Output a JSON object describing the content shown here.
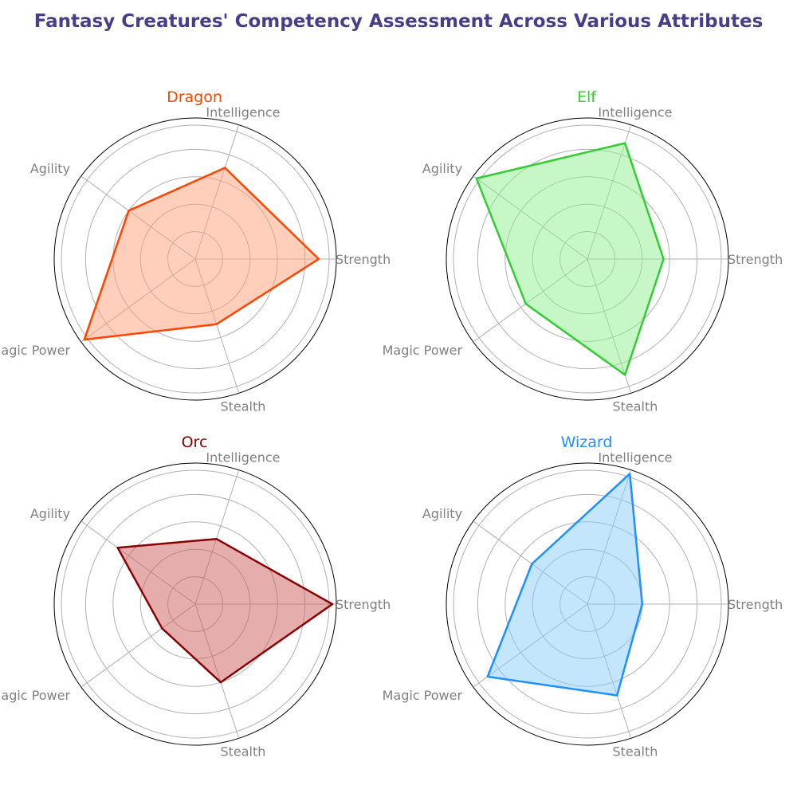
{
  "title": "Fantasy Creatures' Competency Assessment Across Various Attributes",
  "colors": {
    "title": "#483d8b",
    "axis_label": "#808080",
    "grid": "#b0b0b0",
    "frame": "#000000"
  },
  "chart_data": [
    {
      "type": "radar",
      "title": "Dragon",
      "color": "#ff4500",
      "fill": "#ffa07a",
      "categories": [
        "Strength",
        "Intelligence",
        "Agility",
        "Magic Power",
        "Stealth"
      ],
      "values": [
        9,
        7,
        6,
        10,
        5
      ],
      "rlim": [
        0,
        10
      ],
      "grid": true
    },
    {
      "type": "radar",
      "title": "Elf",
      "color": "#32cd32",
      "fill": "#90ee90",
      "categories": [
        "Strength",
        "Intelligence",
        "Agility",
        "Magic Power",
        "Stealth"
      ],
      "values": [
        5,
        8,
        9,
        5,
        8
      ],
      "rlim": [
        0,
        9
      ],
      "grid": true
    },
    {
      "type": "radar",
      "title": "Orc",
      "color": "#8b0000",
      "fill": "#cd5c5c",
      "categories": [
        "Strength",
        "Intelligence",
        "Agility",
        "Magic Power",
        "Stealth"
      ],
      "values": [
        10,
        5,
        7,
        3,
        6
      ],
      "rlim": [
        0,
        10
      ],
      "grid": true
    },
    {
      "type": "radar",
      "title": "Wizard",
      "color": "#1e90ff",
      "fill": "#87cefa",
      "categories": [
        "Strength",
        "Intelligence",
        "Agility",
        "Magic Power",
        "Stealth"
      ],
      "values": [
        4,
        10,
        5,
        9,
        7
      ],
      "rlim": [
        0,
        10
      ],
      "grid": true
    }
  ]
}
